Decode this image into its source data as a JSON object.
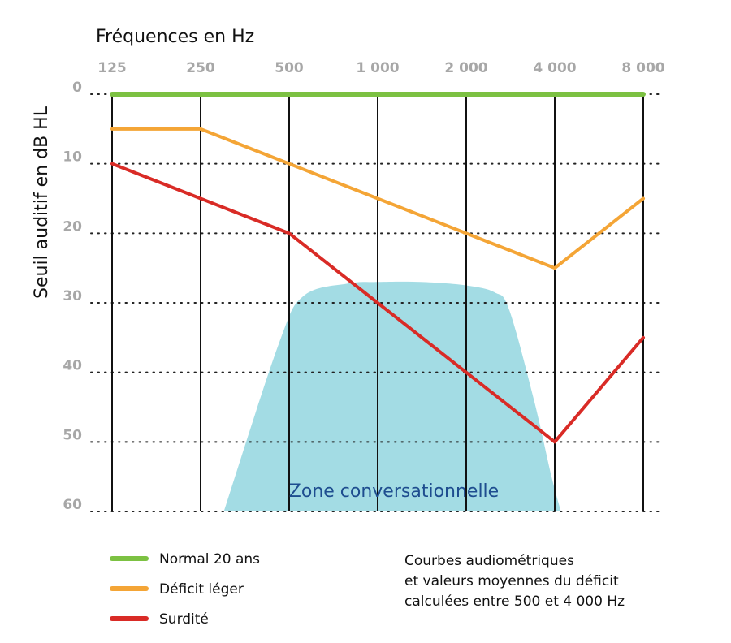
{
  "chart_data": {
    "type": "line",
    "xlabel": "Fréquences en Hz",
    "ylabel": "Seuil auditif en dB HL",
    "x": [
      125,
      250,
      500,
      1000,
      2000,
      4000,
      8000
    ],
    "x_tick_labels": [
      "125",
      "250",
      "500",
      "1 000",
      "2 000",
      "4 000",
      "8 000"
    ],
    "y_ticks": [
      0,
      10,
      20,
      30,
      40,
      50,
      60
    ],
    "ylim": [
      0,
      60
    ],
    "y_inverted": true,
    "x_scale": "log",
    "gridlines": {
      "vertical": "solid",
      "horizontal": "dotted"
    },
    "legend_position": "bottom-left",
    "series": [
      {
        "name": "Normal 20 ans",
        "color": "#7cc142",
        "values": [
          0,
          0,
          0,
          0,
          0,
          0,
          0
        ]
      },
      {
        "name": "Déficit léger",
        "color": "#f4a536",
        "values": [
          5,
          5,
          10,
          15,
          20,
          25,
          15
        ]
      },
      {
        "name": "Surdité",
        "color": "#d92b26",
        "values": [
          10,
          15,
          20,
          30,
          40,
          50,
          35
        ]
      }
    ],
    "zone": {
      "label": "Zone conversationnelle",
      "color": "#a3dce4",
      "outline": [
        [
          300,
          60
        ],
        [
          460,
          36
        ],
        [
          560,
          29
        ],
        [
          800,
          27.2
        ],
        [
          1000,
          27
        ],
        [
          1400,
          27
        ],
        [
          2000,
          27.5
        ],
        [
          2500,
          28.5
        ],
        [
          2800,
          31
        ],
        [
          3400,
          44
        ],
        [
          3900,
          55
        ],
        [
          4200,
          60
        ]
      ]
    },
    "note": [
      "Courbes audiométriques",
      "et valeurs moyennes du déficit",
      "calculées entre 500 et 4 000 Hz"
    ]
  }
}
